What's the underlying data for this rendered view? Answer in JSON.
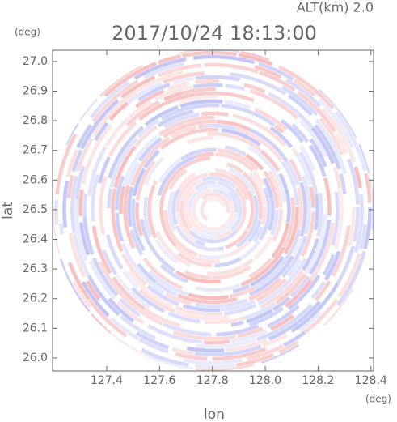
{
  "chart_data": {
    "type": "radar-ppi",
    "title": "2017/10/24 18:13:00",
    "subtitle": "ALT(km)  2.0",
    "x_label": "lon",
    "y_label": "lat",
    "x_unit": "(deg)",
    "y_unit": "(deg)",
    "xlim": [
      127.195,
      128.41
    ],
    "ylim": [
      25.956,
      27.038
    ],
    "xticks": [
      127.4,
      127.6,
      127.8,
      {
        "value": 128,
        "label": "128.0"
      },
      128.2,
      128.4
    ],
    "yticks": [
      {
        "value": 26,
        "label": "26.0"
      },
      26.1,
      26.2,
      26.3,
      26.4,
      26.5,
      26.6,
      26.7,
      26.8,
      26.9,
      {
        "value": 27,
        "label": "27.0"
      }
    ]
  }
}
